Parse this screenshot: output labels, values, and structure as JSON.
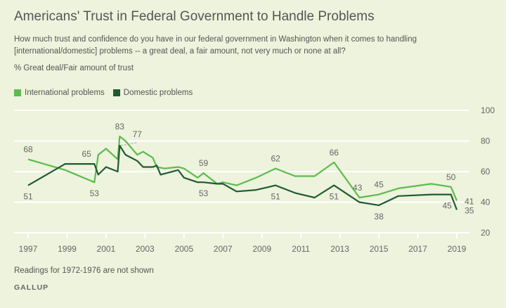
{
  "chart_data": {
    "type": "line",
    "title": "Americans' Trust in Federal Government to Handle Problems",
    "subtitle": "How much trust and confidence do you have in our federal government in Washington when it comes to handling [international/domestic] problems -- a great deal, a fair amount, not very much or none at all?",
    "ylabel": "% Great deal/Fair amount of trust",
    "xlim": [
      1997,
      2019
    ],
    "ylim": [
      20,
      100
    ],
    "yticks": [
      20,
      40,
      60,
      80,
      100
    ],
    "xticks": [
      1997,
      1999,
      2001,
      2003,
      2005,
      2007,
      2009,
      2011,
      2013,
      2015,
      2017,
      2019
    ],
    "grid": true,
    "legend_position": "top-left",
    "series": [
      {
        "name": "International problems",
        "color": "#5dbb4c",
        "points": [
          [
            1997.0,
            68
          ],
          [
            1998.9,
            61
          ],
          [
            2000.4,
            53
          ],
          [
            2000.6,
            71
          ],
          [
            2001.0,
            75
          ],
          [
            2001.6,
            68
          ],
          [
            2001.7,
            83
          ],
          [
            2002.0,
            80
          ],
          [
            2002.6,
            71
          ],
          [
            2002.9,
            73
          ],
          [
            2003.4,
            69
          ],
          [
            2003.6,
            63
          ],
          [
            2004.0,
            62
          ],
          [
            2004.7,
            63
          ],
          [
            2005.0,
            62
          ],
          [
            2005.7,
            56
          ],
          [
            2006.0,
            59
          ],
          [
            2006.7,
            52
          ],
          [
            2007.0,
            53
          ],
          [
            2007.7,
            51
          ],
          [
            2008.7,
            56
          ],
          [
            2009.7,
            62
          ],
          [
            2010.7,
            57
          ],
          [
            2011.7,
            57
          ],
          [
            2012.7,
            66
          ],
          [
            2014.0,
            43
          ],
          [
            2015.0,
            45
          ],
          [
            2016.0,
            49
          ],
          [
            2017.7,
            52
          ],
          [
            2018.7,
            50
          ],
          [
            2019.0,
            41
          ]
        ]
      },
      {
        "name": "Domestic problems",
        "color": "#1f5a33",
        "points": [
          [
            1997.0,
            51
          ],
          [
            1998.9,
            65
          ],
          [
            2000.4,
            65
          ],
          [
            2000.6,
            58
          ],
          [
            2001.0,
            63
          ],
          [
            2001.6,
            60
          ],
          [
            2001.7,
            77
          ],
          [
            2002.0,
            71
          ],
          [
            2002.6,
            67
          ],
          [
            2002.9,
            63
          ],
          [
            2003.4,
            63
          ],
          [
            2003.6,
            64
          ],
          [
            2003.8,
            58
          ],
          [
            2004.7,
            61
          ],
          [
            2005.0,
            56
          ],
          [
            2005.7,
            53
          ],
          [
            2006.0,
            53
          ],
          [
            2006.7,
            52
          ],
          [
            2007.0,
            52
          ],
          [
            2007.7,
            47
          ],
          [
            2008.7,
            48
          ],
          [
            2009.7,
            51
          ],
          [
            2010.7,
            46
          ],
          [
            2011.7,
            43
          ],
          [
            2012.7,
            51
          ],
          [
            2014.0,
            40
          ],
          [
            2015.0,
            38
          ],
          [
            2016.0,
            44
          ],
          [
            2017.7,
            45
          ],
          [
            2018.7,
            45
          ],
          [
            2019.0,
            35
          ]
        ]
      }
    ],
    "annotations": [
      {
        "text": "68",
        "x": 1997.0,
        "y": 68,
        "pos": "above"
      },
      {
        "text": "51",
        "x": 1997.0,
        "y": 51,
        "pos": "below"
      },
      {
        "text": "65",
        "x": 2000.0,
        "y": 65,
        "pos": "above"
      },
      {
        "text": "53",
        "x": 2000.4,
        "y": 53,
        "pos": "below"
      },
      {
        "text": "83",
        "x": 2001.7,
        "y": 83,
        "pos": "above"
      },
      {
        "text": "77",
        "x": 2002.6,
        "y": 78,
        "pos": "above"
      },
      {
        "text": "59",
        "x": 2006.0,
        "y": 59,
        "pos": "above"
      },
      {
        "text": "53",
        "x": 2006.0,
        "y": 53,
        "pos": "below"
      },
      {
        "text": "62",
        "x": 2009.7,
        "y": 62,
        "pos": "above"
      },
      {
        "text": "51",
        "x": 2009.7,
        "y": 51,
        "pos": "below"
      },
      {
        "text": "66",
        "x": 2012.7,
        "y": 66,
        "pos": "above"
      },
      {
        "text": "51",
        "x": 2012.7,
        "y": 51,
        "pos": "below"
      },
      {
        "text": "43",
        "x": 2013.9,
        "y": 43,
        "pos": "above"
      },
      {
        "text": "45",
        "x": 2015.0,
        "y": 45,
        "pos": "above"
      },
      {
        "text": "38",
        "x": 2015.0,
        "y": 38,
        "pos": "below"
      },
      {
        "text": "50",
        "x": 2018.7,
        "y": 50,
        "pos": "above"
      },
      {
        "text": "45",
        "x": 2018.5,
        "y": 45,
        "pos": "below"
      },
      {
        "text": "41",
        "x": 2019.4,
        "y": 41,
        "pos": "right"
      },
      {
        "text": "35",
        "x": 2019.4,
        "y": 35,
        "pos": "right"
      }
    ]
  },
  "footer": {
    "note": "Readings for 1972-1976 are not shown",
    "brand": "GALLUP"
  }
}
